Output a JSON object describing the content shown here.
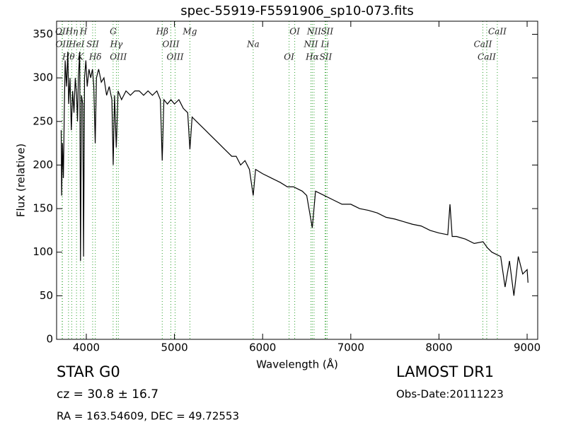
{
  "chart_data": {
    "type": "line",
    "title": "spec-55919-F5591906_sp10-073.fits",
    "x_label": "Wavelength (Å)",
    "y_label": "Flux (relative)",
    "xlim": [
      3663,
      9120
    ],
    "ylim": [
      0,
      365
    ],
    "xticks": [
      4000,
      5000,
      6000,
      7000,
      8000,
      9000
    ],
    "yticks": [
      0,
      50,
      100,
      150,
      200,
      250,
      300,
      350
    ],
    "x": [
      3715,
      3720,
      3730,
      3740,
      3750,
      3760,
      3775,
      3790,
      3800,
      3815,
      3830,
      3845,
      3860,
      3875,
      3890,
      3900,
      3910,
      3925,
      3934,
      3945,
      3960,
      3969,
      3980,
      3995,
      4010,
      4030,
      4050,
      4070,
      4085,
      4101,
      4115,
      4140,
      4170,
      4200,
      4230,
      4260,
      4290,
      4305,
      4320,
      4340,
      4360,
      4400,
      4450,
      4500,
      4550,
      4600,
      4650,
      4700,
      4750,
      4800,
      4840,
      4861,
      4880,
      4920,
      4960,
      5000,
      5050,
      5100,
      5150,
      5175,
      5200,
      5250,
      5300,
      5350,
      5400,
      5450,
      5500,
      5550,
      5600,
      5650,
      5700,
      5750,
      5800,
      5850,
      5893,
      5920,
      6000,
      6100,
      6200,
      6280,
      6350,
      6450,
      6500,
      6563,
      6600,
      6700,
      6800,
      6900,
      7000,
      7100,
      7200,
      7300,
      7400,
      7500,
      7600,
      7700,
      7800,
      7900,
      8000,
      8100,
      8125,
      8150,
      8200,
      8300,
      8400,
      8500,
      8550,
      8600,
      8700,
      8750,
      8800,
      8850,
      8900,
      8950,
      9000,
      9010
    ],
    "series": [
      {
        "color": "#000000",
        "values": [
          240,
          165,
          225,
          185,
          260,
          320,
          290,
          330,
          270,
          300,
          240,
          285,
          260,
          300,
          280,
          250,
          300,
          330,
          90,
          280,
          270,
          95,
          300,
          320,
          290,
          310,
          300,
          310,
          290,
          225,
          300,
          310,
          295,
          300,
          280,
          290,
          275,
          200,
          280,
          220,
          285,
          275,
          285,
          280,
          285,
          285,
          280,
          285,
          280,
          285,
          275,
          205,
          275,
          270,
          275,
          270,
          275,
          265,
          260,
          218,
          255,
          250,
          245,
          240,
          235,
          230,
          225,
          220,
          215,
          210,
          210,
          200,
          205,
          195,
          165,
          195,
          190,
          185,
          180,
          175,
          175,
          170,
          165,
          128,
          170,
          165,
          160,
          155,
          155,
          150,
          148,
          145,
          140,
          138,
          135,
          132,
          130,
          125,
          122,
          120,
          155,
          118,
          118,
          115,
          110,
          112,
          105,
          100,
          95,
          60,
          90,
          50,
          95,
          75,
          80,
          65
        ]
      }
    ],
    "line_color": "#2ca02c",
    "lines": [
      {
        "wavelength": 3726,
        "label": "OII"
      },
      {
        "wavelength": 3729,
        "label": "OII"
      },
      {
        "wavelength": 3798,
        "label": "Hθ"
      },
      {
        "wavelength": 3835,
        "label": "Hη"
      },
      {
        "wavelength": 3889,
        "label": "HeI"
      },
      {
        "wavelength": 3934,
        "label": "K"
      },
      {
        "wavelength": 3969,
        "label": "H"
      },
      {
        "wavelength": 4072,
        "label": "SII"
      },
      {
        "wavelength": 4102,
        "label": "Hδ"
      },
      {
        "wavelength": 4304,
        "label": "G"
      },
      {
        "wavelength": 4341,
        "label": "Hγ"
      },
      {
        "wavelength": 4363,
        "label": "OIII"
      },
      {
        "wavelength": 4861,
        "label": "Hβ"
      },
      {
        "wavelength": 4959,
        "label": "OIII"
      },
      {
        "wavelength": 5007,
        "label": "OIII"
      },
      {
        "wavelength": 5175,
        "label": "Mg"
      },
      {
        "wavelength": 5893,
        "label": "Na"
      },
      {
        "wavelength": 6300,
        "label": "OI"
      },
      {
        "wavelength": 6364,
        "label": "OI"
      },
      {
        "wavelength": 6548,
        "label": "NII"
      },
      {
        "wavelength": 6563,
        "label": "Hα"
      },
      {
        "wavelength": 6583,
        "label": "NII"
      },
      {
        "wavelength": 6708,
        "label": "Li"
      },
      {
        "wavelength": 6716,
        "label": "SII"
      },
      {
        "wavelength": 6731,
        "label": "SII"
      },
      {
        "wavelength": 8498,
        "label": "CaII"
      },
      {
        "wavelength": 8542,
        "label": "CaII"
      },
      {
        "wavelength": 8662,
        "label": "CaII"
      }
    ],
    "info": {
      "object": "STAR   G0",
      "redshift": "cz = 30.8 ± 16.7",
      "coords": "RA = 163.54609, DEC = 49.72553",
      "survey": "LAMOST DR1",
      "date": "Obs-Date:20111223"
    }
  }
}
